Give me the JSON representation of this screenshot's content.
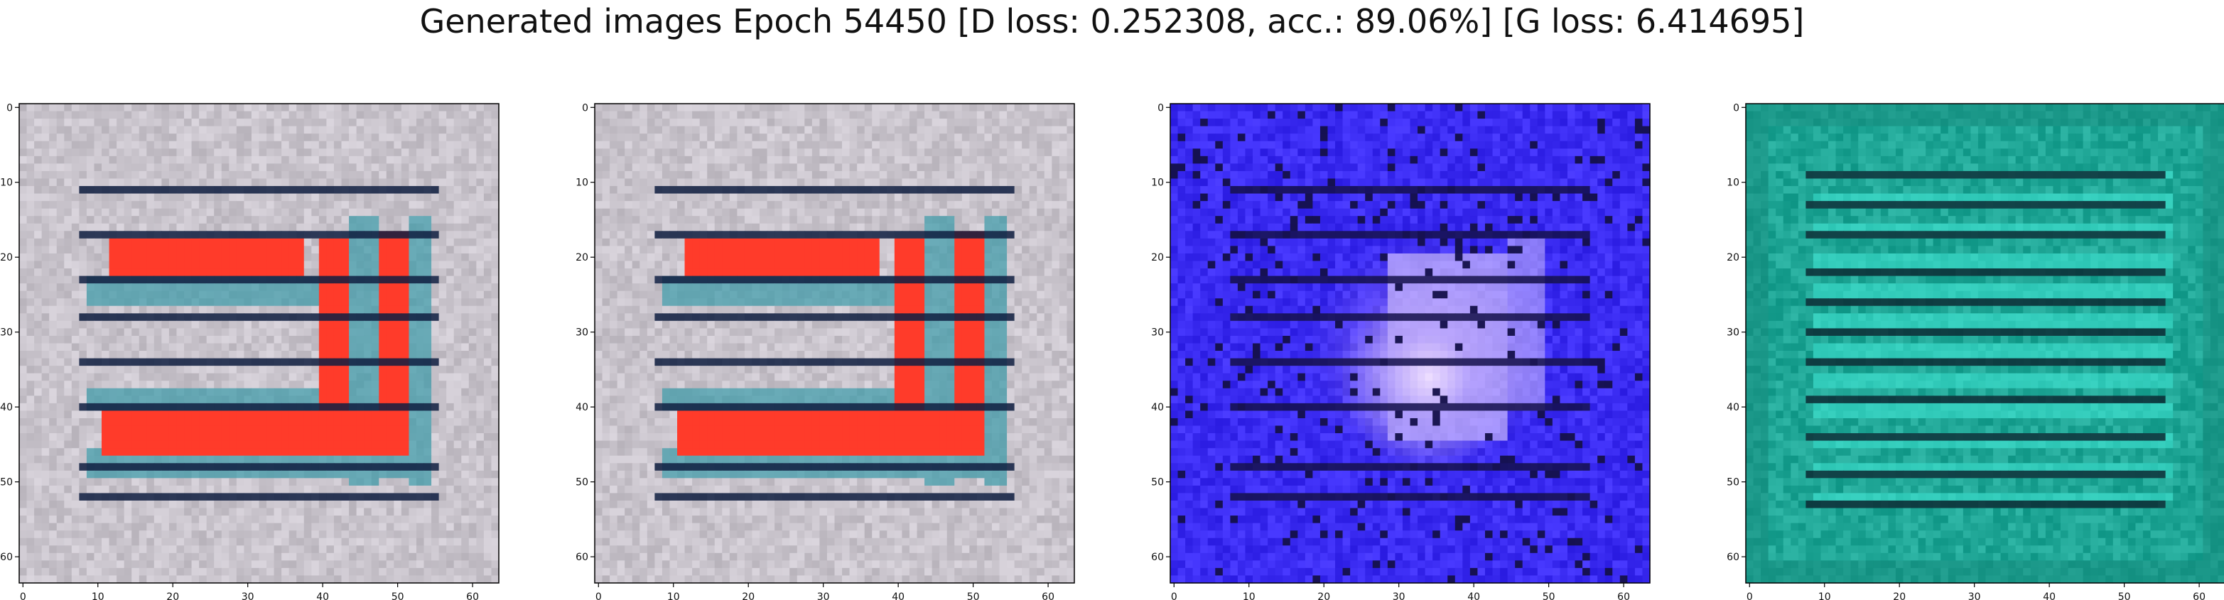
{
  "figure": {
    "title": "Generated images Epoch 54450 [D loss: 0.252308, acc.: 89.06%] [G loss: 6.414695]"
  },
  "chart_data": [
    {
      "type": "heatmap",
      "xlim": [
        0,
        63
      ],
      "ylim": [
        63,
        0
      ],
      "x_ticks": [
        0,
        10,
        20,
        30,
        40,
        50,
        60
      ],
      "y_ticks": [
        0,
        10,
        20,
        30,
        40,
        50,
        60
      ],
      "grid": false,
      "colors": {
        "background": "#c9c4cc",
        "stripe": "#0f1e40",
        "shape": "#ff3b2a",
        "halo": "#3a9aa8"
      }
    },
    {
      "type": "heatmap",
      "xlim": [
        0,
        63
      ],
      "ylim": [
        63,
        0
      ],
      "x_ticks": [
        0,
        10,
        20,
        30,
        40,
        50,
        60
      ],
      "y_ticks": [
        0,
        10,
        20,
        30,
        40,
        50,
        60
      ],
      "grid": false,
      "colors": {
        "background": "#c9c4cc",
        "stripe": "#0f1e40",
        "shape": "#ff3b2a",
        "halo": "#3a9aa8"
      }
    },
    {
      "type": "heatmap",
      "xlim": [
        0,
        63
      ],
      "ylim": [
        63,
        0
      ],
      "x_ticks": [
        0,
        10,
        20,
        30,
        40,
        50,
        60
      ],
      "y_ticks": [
        0,
        10,
        20,
        30,
        40,
        50,
        60
      ],
      "grid": false,
      "colors": {
        "background": "#3b2cf2",
        "stripe": "#14104a",
        "shape": "#ecdcff",
        "halo": "#9a7cf6"
      }
    },
    {
      "type": "heatmap",
      "xlim": [
        0,
        63
      ],
      "ylim": [
        63,
        0
      ],
      "x_ticks": [
        0,
        10,
        20,
        30,
        40,
        50,
        60
      ],
      "y_ticks": [
        0,
        10,
        20,
        30,
        40,
        50,
        60
      ],
      "grid": false,
      "colors": {
        "background": "#1fa696",
        "stripe": "#0c2b34",
        "shape": "#3fe4d2",
        "halo": "#178a7c"
      }
    }
  ]
}
